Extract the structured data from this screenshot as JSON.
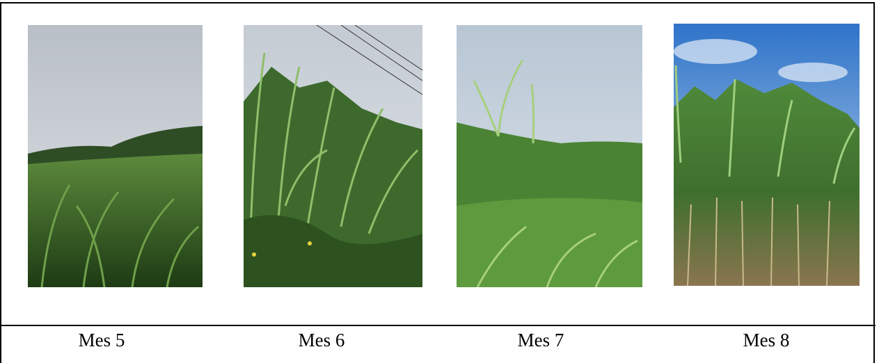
{
  "table": {
    "rows": [
      [
        "Mes 5",
        "Mes 6",
        "Mes 7",
        "Mes 8"
      ]
    ]
  }
}
